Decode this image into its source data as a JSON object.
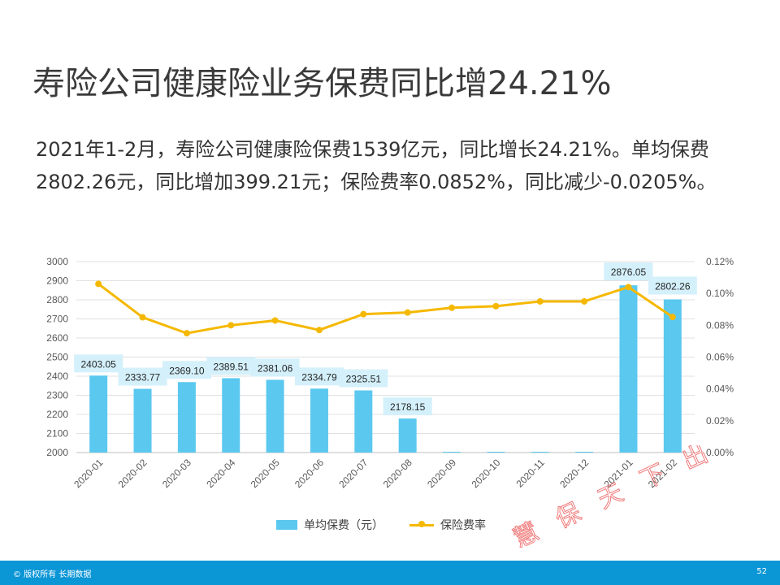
{
  "slide": {
    "title": "寿险公司健康险业务保费同比增24.21%",
    "description": "2021年1-2月，寿险公司健康险保费1539亿元，同比增长24.21%。单均保费2802.26元，同比增加399.21元；保险费率0.0852%，同比减少-0.0205%。",
    "watermark": "慧 保 天 下 出 品",
    "footer_copyright": "© 版权所有 长期数据",
    "page_number": "52"
  },
  "colors": {
    "bar": "#5bc8ef",
    "line": "#f5b800",
    "label_bg": "#d4f0fb",
    "footer": "#0b96d6",
    "watermark": "#f07878"
  },
  "chart_data": {
    "type": "bar",
    "categories": [
      "2020-01",
      "2020-02",
      "2020-03",
      "2020-04",
      "2020-05",
      "2020-06",
      "2020-07",
      "2020-08",
      "2020-09",
      "2020-10",
      "2020-11",
      "2020-12",
      "2021-01",
      "2021-02"
    ],
    "series": [
      {
        "name": "单均保费（元）",
        "type": "bar",
        "axis": "left",
        "values": [
          2403.05,
          2333.77,
          2369.1,
          2389.51,
          2381.06,
          2334.79,
          2325.51,
          2178.15,
          null,
          null,
          null,
          null,
          2876.05,
          2802.26
        ],
        "labels": [
          "2403.05",
          "2333.77",
          "2369.10",
          "2389.51",
          "2381.06",
          "2334.79",
          "2325.51",
          "2178.15",
          "",
          "",
          "",
          "",
          "2876.05",
          "2802.26"
        ]
      },
      {
        "name": "保险费率",
        "type": "line",
        "axis": "right",
        "unit": "%",
        "values": [
          0.106,
          0.085,
          0.075,
          0.08,
          0.083,
          0.077,
          0.087,
          0.088,
          0.091,
          0.092,
          0.095,
          0.095,
          0.104,
          0.0852
        ]
      }
    ],
    "left_axis": {
      "ylim": [
        2000,
        3000
      ],
      "ticks": [
        "2000",
        "2100",
        "2200",
        "2300",
        "2400",
        "2500",
        "2600",
        "2700",
        "2800",
        "2900",
        "3000"
      ]
    },
    "right_axis": {
      "ylim": [
        0,
        0.12
      ],
      "ticks": [
        "0.00%",
        "0.02%",
        "0.04%",
        "0.06%",
        "0.08%",
        "0.10%",
        "0.12%"
      ]
    },
    "grid": true,
    "legend": "bottom"
  }
}
